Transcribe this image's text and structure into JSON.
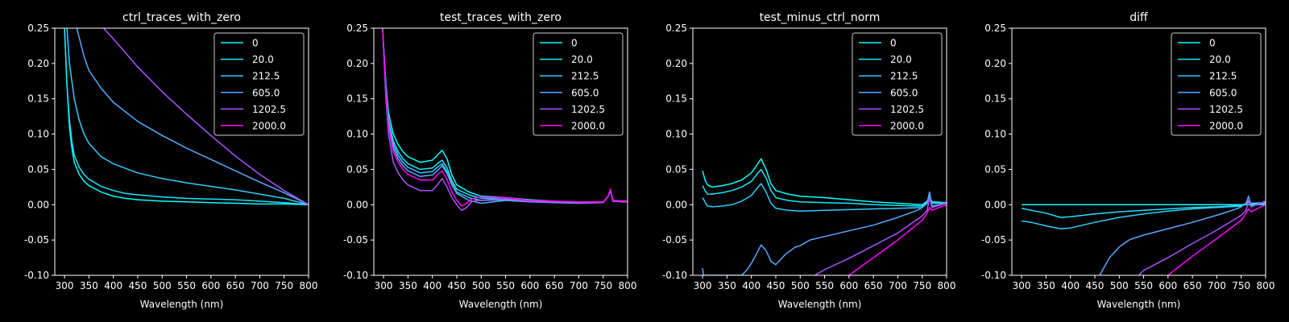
{
  "colors": {
    "background": "#000000",
    "foreground": "#ffffff",
    "series": [
      "#00ffff",
      "#1ae5ff",
      "#33ccff",
      "#55aaff",
      "#aa55ff",
      "#ff00ff"
    ]
  },
  "chart_data": [
    {
      "type": "line",
      "title": "ctrl_traces_with_zero",
      "xlabel": "Wavelength (nm)",
      "ylabel": "",
      "xlim": [
        280,
        800
      ],
      "ylim": [
        -0.1,
        0.25
      ],
      "xticks": [
        300,
        350,
        400,
        450,
        500,
        550,
        600,
        650,
        700,
        750,
        800
      ],
      "yticks": [
        -0.1,
        -0.05,
        0.0,
        0.05,
        0.1,
        0.15,
        0.2,
        0.25
      ],
      "grid": false,
      "legend": "top-right",
      "series": [
        {
          "name": "0",
          "x": [
            300,
            305,
            310,
            315,
            320,
            330,
            340,
            350,
            375,
            400,
            425,
            450,
            500,
            550,
            600,
            650,
            700,
            750,
            800
          ],
          "y": [
            0.25,
            0.17,
            0.11,
            0.08,
            0.06,
            0.043,
            0.033,
            0.027,
            0.018,
            0.012,
            0.009,
            0.007,
            0.005,
            0.004,
            0.003,
            0.002,
            0.001,
            0.001,
            0.0
          ]
        },
        {
          "name": "20.0",
          "x": [
            300,
            305,
            310,
            315,
            320,
            330,
            340,
            350,
            375,
            400,
            425,
            450,
            500,
            550,
            600,
            650,
            700,
            750,
            800
          ],
          "y": [
            0.25,
            0.17,
            0.12,
            0.09,
            0.07,
            0.053,
            0.043,
            0.036,
            0.026,
            0.02,
            0.016,
            0.014,
            0.011,
            0.009,
            0.008,
            0.007,
            0.005,
            0.003,
            0.0
          ]
        },
        {
          "name": "212.5",
          "x": [
            305,
            310,
            320,
            330,
            340,
            350,
            375,
            400,
            450,
            500,
            550,
            600,
            650,
            700,
            750,
            800
          ],
          "y": [
            0.25,
            0.2,
            0.15,
            0.12,
            0.1,
            0.087,
            0.068,
            0.058,
            0.045,
            0.037,
            0.031,
            0.026,
            0.021,
            0.015,
            0.009,
            0.0
          ]
        },
        {
          "name": "605.0",
          "x": [
            325,
            340,
            350,
            375,
            400,
            450,
            500,
            550,
            600,
            650,
            700,
            750,
            800
          ],
          "y": [
            0.25,
            0.21,
            0.19,
            0.165,
            0.145,
            0.118,
            0.098,
            0.08,
            0.064,
            0.048,
            0.032,
            0.017,
            0.0
          ]
        },
        {
          "name": "1202.5",
          "x": [
            380,
            400,
            450,
            500,
            550,
            600,
            650,
            700,
            750,
            800
          ],
          "y": [
            0.25,
            0.235,
            0.195,
            0.16,
            0.128,
            0.098,
            0.069,
            0.043,
            0.02,
            0.0
          ]
        }
      ]
    },
    {
      "type": "line",
      "title": "test_traces_with_zero",
      "xlabel": "Wavelength (nm)",
      "ylabel": "",
      "xlim": [
        280,
        800
      ],
      "ylim": [
        -0.1,
        0.25
      ],
      "xticks": [
        300,
        350,
        400,
        450,
        500,
        550,
        600,
        650,
        700,
        750,
        800
      ],
      "yticks": [
        -0.1,
        -0.05,
        0.0,
        0.05,
        0.1,
        0.15,
        0.2,
        0.25
      ],
      "grid": false,
      "legend": "top-right",
      "series": [
        {
          "name": "0",
          "x": [
            298,
            305,
            310,
            320,
            330,
            340,
            350,
            375,
            400,
            410,
            420,
            430,
            440,
            450,
            475,
            500,
            550,
            600,
            650,
            700,
            750,
            760,
            765,
            770,
            800
          ],
          "y": [
            0.25,
            0.17,
            0.13,
            0.1,
            0.085,
            0.075,
            0.068,
            0.06,
            0.063,
            0.07,
            0.077,
            0.065,
            0.042,
            0.028,
            0.018,
            0.012,
            0.01,
            0.007,
            0.005,
            0.003,
            0.003,
            0.012,
            0.02,
            0.005,
            0.004
          ]
        },
        {
          "name": "20.0",
          "x": [
            298,
            305,
            310,
            320,
            330,
            340,
            350,
            375,
            400,
            410,
            420,
            430,
            440,
            450,
            475,
            500,
            550,
            600,
            650,
            700,
            750,
            760,
            765,
            770,
            800
          ],
          "y": [
            0.25,
            0.16,
            0.12,
            0.09,
            0.075,
            0.065,
            0.058,
            0.05,
            0.052,
            0.058,
            0.063,
            0.052,
            0.034,
            0.022,
            0.014,
            0.009,
            0.008,
            0.006,
            0.004,
            0.003,
            0.003,
            0.012,
            0.02,
            0.005,
            0.004
          ]
        },
        {
          "name": "212.5",
          "x": [
            298,
            305,
            310,
            320,
            330,
            340,
            350,
            375,
            400,
            410,
            420,
            430,
            440,
            450,
            475,
            500,
            550,
            600,
            650,
            700,
            750,
            760,
            765,
            770,
            800
          ],
          "y": [
            0.25,
            0.16,
            0.12,
            0.085,
            0.07,
            0.06,
            0.053,
            0.045,
            0.047,
            0.053,
            0.058,
            0.047,
            0.03,
            0.018,
            0.01,
            0.006,
            0.007,
            0.005,
            0.004,
            0.003,
            0.003,
            0.012,
            0.02,
            0.005,
            0.004
          ]
        },
        {
          "name": "605.0",
          "x": [
            298,
            305,
            310,
            320,
            330,
            340,
            350,
            375,
            400,
            410,
            420,
            430,
            440,
            450,
            475,
            500,
            550,
            600,
            650,
            700,
            750,
            760,
            765,
            770,
            800
          ],
          "y": [
            0.25,
            0.15,
            0.11,
            0.08,
            0.065,
            0.055,
            0.048,
            0.04,
            0.042,
            0.048,
            0.055,
            0.044,
            0.028,
            0.016,
            0.006,
            0.002,
            0.006,
            0.004,
            0.003,
            0.002,
            0.003,
            0.012,
            0.02,
            0.005,
            0.004
          ]
        },
        {
          "name": "1202.5",
          "x": [
            298,
            305,
            310,
            320,
            330,
            340,
            350,
            375,
            400,
            410,
            420,
            430,
            440,
            450,
            460,
            470,
            480,
            490,
            500,
            520,
            550,
            600,
            650,
            700,
            750,
            760,
            765,
            770,
            800
          ],
          "y": [
            0.25,
            0.15,
            0.1,
            0.06,
            0.045,
            0.035,
            0.028,
            0.02,
            0.02,
            0.028,
            0.037,
            0.025,
            0.01,
            0.0,
            -0.008,
            -0.004,
            0.004,
            0.006,
            0.006,
            0.007,
            0.008,
            0.005,
            0.004,
            0.003,
            0.003,
            0.012,
            0.02,
            0.005,
            0.004
          ]
        },
        {
          "name": "2000.0",
          "x": [
            298,
            305,
            310,
            320,
            330,
            340,
            350,
            375,
            400,
            410,
            420,
            430,
            440,
            450,
            460,
            470,
            480,
            490,
            500,
            520,
            550,
            600,
            650,
            700,
            750,
            760,
            765,
            770,
            800
          ],
          "y": [
            0.25,
            0.16,
            0.11,
            0.075,
            0.06,
            0.05,
            0.043,
            0.035,
            0.035,
            0.042,
            0.048,
            0.036,
            0.018,
            0.006,
            -0.002,
            0.002,
            0.008,
            0.01,
            0.01,
            0.01,
            0.01,
            0.006,
            0.005,
            0.004,
            0.004,
            0.012,
            0.022,
            0.006,
            0.005
          ]
        }
      ]
    },
    {
      "type": "line",
      "title": "test_minus_ctrl_norm",
      "xlabel": "Wavelength (nm)",
      "ylabel": "",
      "xlim": [
        280,
        800
      ],
      "ylim": [
        -0.1,
        0.25
      ],
      "xticks": [
        300,
        350,
        400,
        450,
        500,
        550,
        600,
        650,
        700,
        750,
        800
      ],
      "yticks": [
        -0.1,
        -0.05,
        0.0,
        0.05,
        0.1,
        0.15,
        0.2,
        0.25
      ],
      "grid": false,
      "legend": "top-right",
      "series": [
        {
          "name": "0",
          "x": [
            300,
            305,
            310,
            320,
            340,
            360,
            380,
            400,
            410,
            420,
            430,
            440,
            450,
            475,
            500,
            550,
            600,
            650,
            700,
            750,
            760,
            765,
            770,
            800
          ],
          "y": [
            0.048,
            0.035,
            0.028,
            0.025,
            0.027,
            0.03,
            0.035,
            0.045,
            0.055,
            0.065,
            0.05,
            0.03,
            0.02,
            0.015,
            0.012,
            0.01,
            0.007,
            0.004,
            0.002,
            0.0,
            0.005,
            0.012,
            0.004,
            0.003
          ]
        },
        {
          "name": "20.0",
          "x": [
            300,
            305,
            310,
            320,
            340,
            360,
            380,
            400,
            410,
            420,
            430,
            440,
            450,
            475,
            500,
            550,
            600,
            650,
            700,
            750,
            760,
            765,
            770,
            800
          ],
          "y": [
            0.027,
            0.02,
            0.015,
            0.015,
            0.017,
            0.02,
            0.025,
            0.033,
            0.042,
            0.05,
            0.038,
            0.02,
            0.01,
            0.006,
            0.004,
            0.003,
            0.002,
            0.0,
            -0.001,
            -0.002,
            0.003,
            0.01,
            0.003,
            0.003
          ]
        },
        {
          "name": "212.5",
          "x": [
            300,
            305,
            310,
            320,
            340,
            360,
            380,
            400,
            410,
            420,
            430,
            440,
            450,
            475,
            500,
            550,
            600,
            650,
            700,
            750,
            760,
            765,
            770,
            800
          ],
          "y": [
            0.01,
            0.004,
            -0.002,
            -0.003,
            -0.002,
            0.0,
            0.005,
            0.013,
            0.022,
            0.03,
            0.018,
            0.002,
            -0.005,
            -0.008,
            -0.009,
            -0.008,
            -0.007,
            -0.006,
            -0.005,
            -0.004,
            0.002,
            0.008,
            0.002,
            0.002
          ]
        },
        {
          "name": "605.0",
          "x": [
            300,
            302,
            380,
            390,
            400,
            410,
            420,
            430,
            440,
            450,
            470,
            480,
            490,
            500,
            520,
            550,
            600,
            650,
            700,
            740,
            750,
            760,
            765,
            770,
            800
          ],
          "y": [
            -0.09,
            -0.1,
            -0.1,
            -0.093,
            -0.083,
            -0.07,
            -0.057,
            -0.065,
            -0.08,
            -0.085,
            -0.07,
            -0.065,
            -0.06,
            -0.058,
            -0.05,
            -0.045,
            -0.037,
            -0.029,
            -0.018,
            -0.008,
            -0.004,
            0.002,
            0.018,
            -0.002,
            0.002
          ]
        },
        {
          "name": "1202.5",
          "x": [
            530,
            550,
            600,
            650,
            700,
            750,
            760,
            765,
            770,
            800
          ],
          "y": [
            -0.1,
            -0.092,
            -0.076,
            -0.058,
            -0.04,
            -0.016,
            -0.008,
            0.01,
            -0.004,
            0.002
          ]
        },
        {
          "name": "2000.0",
          "x": [
            600,
            650,
            700,
            750,
            760,
            765,
            770,
            800
          ],
          "y": [
            -0.1,
            -0.075,
            -0.05,
            -0.022,
            -0.012,
            -0.004,
            -0.008,
            0.0
          ]
        }
      ]
    },
    {
      "type": "line",
      "title": "diff",
      "xlabel": "Wavelength (nm)",
      "ylabel": "",
      "xlim": [
        280,
        800
      ],
      "ylim": [
        -0.1,
        0.25
      ],
      "xticks": [
        300,
        350,
        400,
        450,
        500,
        550,
        600,
        650,
        700,
        750,
        800
      ],
      "yticks": [
        -0.1,
        -0.05,
        0.0,
        0.05,
        0.1,
        0.15,
        0.2,
        0.25
      ],
      "grid": false,
      "legend": "top-right",
      "series": [
        {
          "name": "0",
          "x": [
            300,
            800
          ],
          "y": [
            0.0,
            0.0
          ]
        },
        {
          "name": "20.0",
          "x": [
            300,
            320,
            350,
            380,
            400,
            450,
            500,
            550,
            600,
            650,
            700,
            750,
            760,
            765,
            770,
            800
          ],
          "y": [
            -0.005,
            -0.008,
            -0.012,
            -0.018,
            -0.017,
            -0.013,
            -0.01,
            -0.008,
            -0.006,
            -0.004,
            -0.003,
            -0.001,
            0.002,
            0.006,
            0.002,
            0.003
          ]
        },
        {
          "name": "212.5",
          "x": [
            300,
            320,
            350,
            380,
            400,
            450,
            500,
            550,
            600,
            650,
            700,
            750,
            760,
            765,
            770,
            800
          ],
          "y": [
            -0.023,
            -0.025,
            -0.03,
            -0.034,
            -0.033,
            -0.025,
            -0.018,
            -0.013,
            -0.009,
            -0.006,
            -0.004,
            -0.002,
            0.001,
            0.005,
            0.001,
            0.002
          ]
        },
        {
          "name": "605.0",
          "x": [
            460,
            480,
            500,
            520,
            550,
            600,
            650,
            700,
            740,
            750,
            760,
            765,
            770,
            800
          ],
          "y": [
            -0.1,
            -0.075,
            -0.06,
            -0.05,
            -0.043,
            -0.034,
            -0.025,
            -0.015,
            -0.006,
            -0.003,
            0.002,
            0.012,
            -0.002,
            0.003
          ]
        },
        {
          "name": "1202.5",
          "x": [
            540,
            550,
            600,
            650,
            700,
            750,
            760,
            765,
            770,
            800
          ],
          "y": [
            -0.1,
            -0.093,
            -0.075,
            -0.055,
            -0.036,
            -0.015,
            -0.008,
            0.006,
            -0.003,
            0.005
          ]
        },
        {
          "name": "2000.0",
          "x": [
            600,
            650,
            700,
            750,
            760,
            765,
            770,
            800
          ],
          "y": [
            -0.1,
            -0.073,
            -0.048,
            -0.022,
            -0.012,
            -0.006,
            -0.01,
            0.0
          ]
        }
      ]
    }
  ]
}
